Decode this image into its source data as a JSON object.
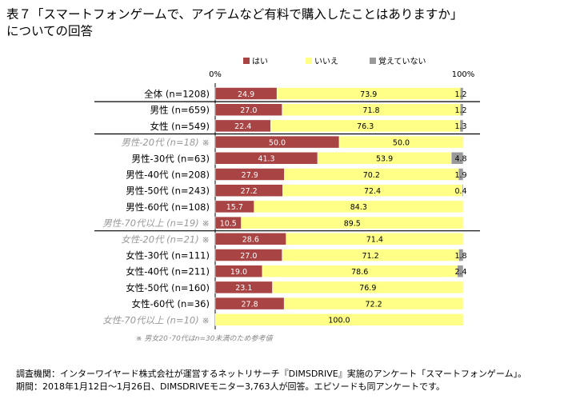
{
  "title_line1": "表７「スマートフォンゲームで、アイテムなど有料で購入したことはありますか」",
  "title_line2": "についての回答",
  "footnote": "※ 男女20･70代はn=30未満のため参考値",
  "footer_line1": "調査機関：インターワイヤード株式会社が運営するネットリサーチ『DIMSDRIVE』実施のアンケート「スマートフォンゲーム」。",
  "footer_line2": "期間：2018年1月12日～1月26日、DIMSDRIVEモニター3,763人が回答。エピソードも同アンケートです。",
  "colors": {
    "yes": "#a84444",
    "no": "#ffff88",
    "dontremember": "#999999",
    "reference_text": "#999999"
  },
  "chart_data": {
    "type": "bar",
    "orientation": "horizontal",
    "stacked": true,
    "axis_labels": {
      "min": "0%",
      "max": "100%"
    },
    "xlim": [
      0,
      100
    ],
    "legend_position": "top",
    "series": [
      {
        "name": "はい",
        "color": "#a84444"
      },
      {
        "name": "いいえ",
        "color": "#ffff88"
      },
      {
        "name": "覚えていない",
        "color": "#999999"
      }
    ],
    "rows": [
      {
        "label": "全体 (n=1208)",
        "values": [
          24.9,
          73.9,
          1.2
        ],
        "value_labels": [
          "24.9",
          "73.9",
          "1.2"
        ],
        "reference": false
      },
      {
        "label": "男性 (n=659)",
        "values": [
          27.0,
          71.8,
          1.2
        ],
        "value_labels": [
          "27.0",
          "71.8",
          "1.2"
        ],
        "reference": false
      },
      {
        "label": "女性 (n=549)",
        "values": [
          22.4,
          76.3,
          1.3
        ],
        "value_labels": [
          "22.4",
          "76.3",
          "1.3"
        ],
        "reference": false
      },
      {
        "label": "男性-20代 (n=18) ※",
        "values": [
          50.0,
          50.0,
          0
        ],
        "value_labels": [
          "50.0",
          "50.0",
          ""
        ],
        "reference": true
      },
      {
        "label": "男性-30代 (n=63)",
        "values": [
          41.3,
          53.9,
          4.8
        ],
        "value_labels": [
          "41.3",
          "53.9",
          "4.8"
        ],
        "reference": false
      },
      {
        "label": "男性-40代 (n=208)",
        "values": [
          27.9,
          70.2,
          1.9
        ],
        "value_labels": [
          "27.9",
          "70.2",
          "1.9"
        ],
        "reference": false
      },
      {
        "label": "男性-50代 (n=243)",
        "values": [
          27.2,
          72.4,
          0.4
        ],
        "value_labels": [
          "27.2",
          "72.4",
          "0.4"
        ],
        "reference": false
      },
      {
        "label": "男性-60代 (n=108)",
        "values": [
          15.7,
          84.3,
          0
        ],
        "value_labels": [
          "15.7",
          "84.3",
          ""
        ],
        "reference": false
      },
      {
        "label": "男性-70代以上 (n=19) ※",
        "values": [
          10.5,
          89.5,
          0
        ],
        "value_labels": [
          "10.5",
          "89.5",
          ""
        ],
        "reference": true
      },
      {
        "label": "女性-20代 (n=21) ※",
        "values": [
          28.6,
          71.4,
          0
        ],
        "value_labels": [
          "28.6",
          "71.4",
          ""
        ],
        "reference": true
      },
      {
        "label": "女性-30代 (n=111)",
        "values": [
          27.0,
          71.2,
          1.8
        ],
        "value_labels": [
          "27.0",
          "71.2",
          "1.8"
        ],
        "reference": false
      },
      {
        "label": "女性-40代 (n=211)",
        "values": [
          19.0,
          78.6,
          2.4
        ],
        "value_labels": [
          "19.0",
          "78.6",
          "2.4"
        ],
        "reference": false
      },
      {
        "label": "女性-50代 (n=160)",
        "values": [
          23.1,
          76.9,
          0
        ],
        "value_labels": [
          "23.1",
          "76.9",
          ""
        ],
        "reference": false
      },
      {
        "label": "女性-60代 (n=36)",
        "values": [
          27.8,
          72.2,
          0
        ],
        "value_labels": [
          "27.8",
          "72.2",
          ""
        ],
        "reference": false
      },
      {
        "label": "女性-70代以上 (n=10) ※",
        "values": [
          0,
          100.0,
          0
        ],
        "value_labels": [
          "",
          "100.0",
          ""
        ],
        "reference": true
      }
    ],
    "group_separators_after": [
      0,
      2,
      8
    ]
  }
}
